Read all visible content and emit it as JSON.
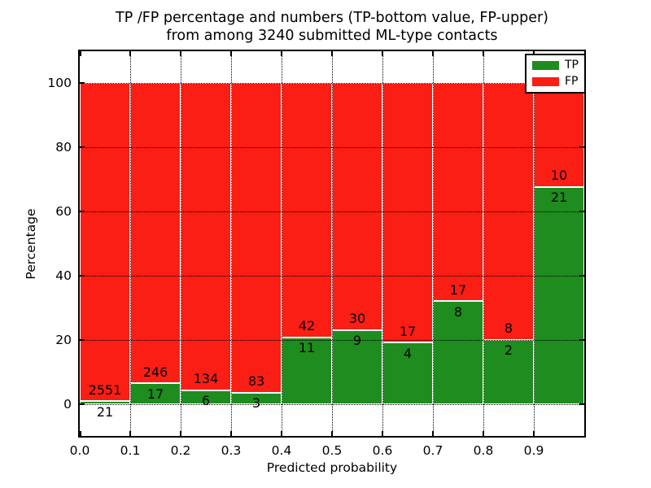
{
  "figure": {
    "title_line1": "TP /FP percentage and numbers (TP-bottom value, FP-upper)",
    "title_line2": "from among 3240 submitted ML-type contacts"
  },
  "chart_data": {
    "type": "bar",
    "stacked": true,
    "title": "TP /FP percentage and numbers (TP-bottom value, FP-upper) from among 3240 submitted ML-type contacts",
    "xlabel": "Predicted probability",
    "ylabel": "Percentage",
    "total_contacts": 3240,
    "bins": [
      "0.0-0.1",
      "0.1-0.2",
      "0.2-0.3",
      "0.3-0.4",
      "0.4-0.5",
      "0.5-0.6",
      "0.6-0.7",
      "0.7-0.8",
      "0.8-0.9",
      "0.9-1.0"
    ],
    "x_tick_labels": [
      "0.0",
      "0.1",
      "0.2",
      "0.3",
      "0.4",
      "0.5",
      "0.6",
      "0.7",
      "0.8",
      "0.9"
    ],
    "y_tick_values": [
      0,
      20,
      40,
      60,
      80,
      100
    ],
    "xlim": [
      0.0,
      1.0
    ],
    "ylim": [
      -10,
      110
    ],
    "grid": true,
    "grid_style": "dotted",
    "legend_position": "upper right",
    "series": [
      {
        "name": "TP",
        "color": "#1e8c1e",
        "counts": [
          21,
          17,
          6,
          3,
          11,
          9,
          4,
          8,
          2,
          21
        ],
        "percentages": [
          0.82,
          6.46,
          4.29,
          3.49,
          20.75,
          23.08,
          19.05,
          32.0,
          20.0,
          67.74
        ]
      },
      {
        "name": "FP",
        "color": "#fa1e14",
        "counts": [
          2551,
          246,
          134,
          83,
          42,
          30,
          17,
          17,
          8,
          10
        ],
        "percentages": [
          99.18,
          93.54,
          95.71,
          96.51,
          79.25,
          76.92,
          80.95,
          68.0,
          80.0,
          32.26
        ]
      }
    ]
  }
}
